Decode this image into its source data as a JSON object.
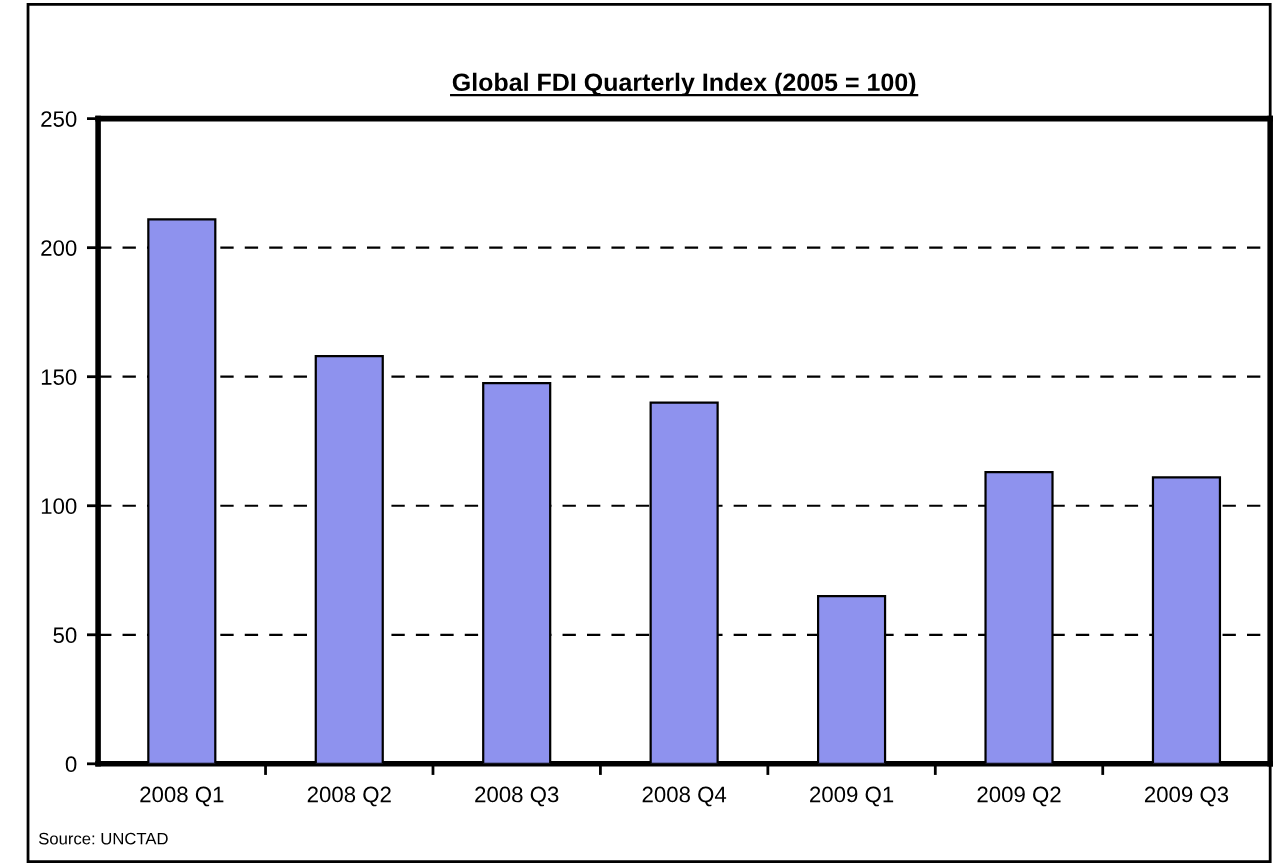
{
  "chart_data": {
    "type": "bar",
    "title": "Global FDI Quarterly Index (2005 = 100)",
    "categories": [
      "2008 Q1",
      "2008 Q2",
      "2008 Q3",
      "2008 Q4",
      "2009 Q1",
      "2009 Q2",
      "2009 Q3"
    ],
    "values": [
      211,
      158,
      147.5,
      140,
      65,
      113,
      111
    ],
    "color": "#8e92ee",
    "ylim": [
      0,
      250
    ],
    "yticks": [
      0,
      50,
      100,
      150,
      200,
      250
    ],
    "grid": "y",
    "line_style": "dashed",
    "annotations": [
      "Source: UNCTAD"
    ]
  }
}
